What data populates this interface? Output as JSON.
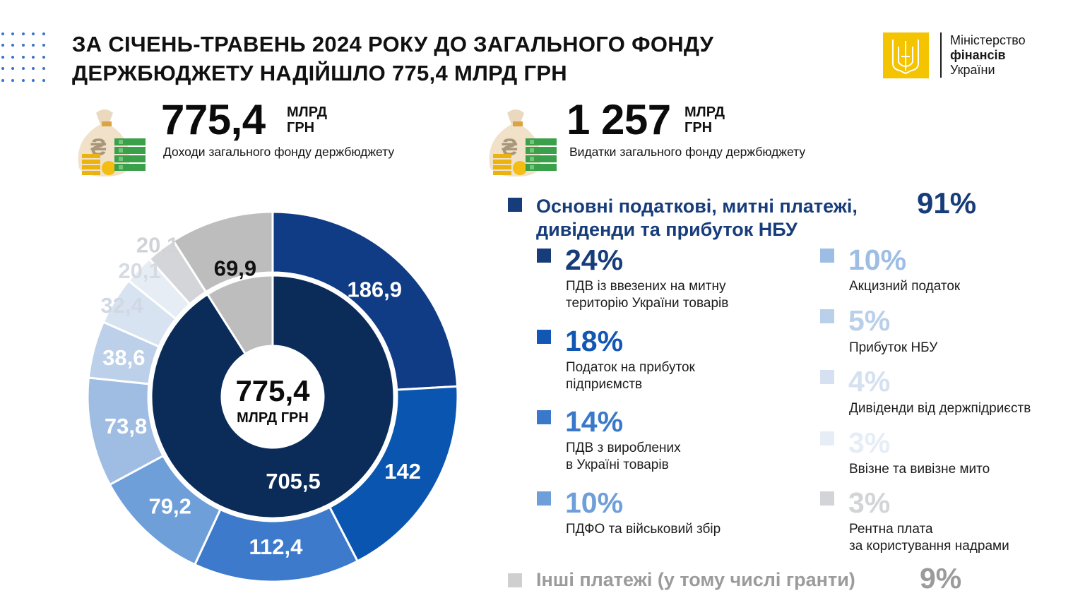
{
  "header": {
    "title_line1": "ЗА СІЧЕНЬ-ТРАВЕНЬ 2024 РОКУ ДО ЗАГАЛЬНОГО ФОНДУ",
    "title_line2": "ДЕРЖБЮДЖЕТУ НАДІЙШЛО 775,4 МЛРД ГРН"
  },
  "logo": {
    "line1": "Міністерство",
    "line2": "фінансів",
    "line3": "України"
  },
  "stats": [
    {
      "value": "775,4",
      "unit1": "МЛРД",
      "unit2": "ГРН",
      "caption": "Доходи загального фонду держбюджету",
      "icon": "money-bag-icon"
    },
    {
      "value": "1 257",
      "unit1": "МЛРД",
      "unit2": "ГРН",
      "caption": "Видатки загального фонду держбюджету",
      "icon": "money-bag-icon"
    }
  ],
  "legend": {
    "main_header": "Основні податкові, митні платежі, дивіденди та прибуток НБУ",
    "main_header_l1": "Основні податкові, митні платежі,",
    "main_header_l2": "дивіденди та прибуток НБУ",
    "main_pct": "91%",
    "main_color": "#173c7a",
    "items": [
      {
        "pct": "24%",
        "l1": "ПДВ із ввезених на митну",
        "l2": "територію України товарів",
        "color": "#173c7a"
      },
      {
        "pct": "18%",
        "l1": "Податок на прибуток",
        "l2": "підприємств",
        "color": "#1257b3"
      },
      {
        "pct": "14%",
        "l1": "ПДВ з вироблених",
        "l2": "в Україні товарів",
        "color": "#3a79c9"
      },
      {
        "pct": "10%",
        "l1": "ПДФО та військовий збір",
        "l2": "",
        "color": "#6f9fd8"
      },
      {
        "pct": "10%",
        "l1": "Акцизний податок",
        "l2": "",
        "color": "#9dbde4"
      },
      {
        "pct": "5%",
        "l1": "Прибуток НБУ",
        "l2": "",
        "color": "#b9cfea"
      },
      {
        "pct": "4%",
        "l1": "Дивіденди від держпідриєств",
        "l2": "",
        "color": "#d5e1f0"
      },
      {
        "pct": "3%",
        "l1": "Ввізне та вивізне мито",
        "l2": "",
        "color": "#e6edf6"
      },
      {
        "pct": "3%",
        "l1": "Рентна плата",
        "l2": "за користування надрами",
        "color": "#d2d4d7"
      }
    ],
    "other_label": "Інші платежі (у тому числі гранти)",
    "other_pct": "9%",
    "other_color": "#cfcfcf"
  },
  "chart_data": {
    "type": "pie",
    "subtype": "double-donut",
    "center_value": "775,4",
    "center_unit": "МЛРД ГРН",
    "outer": {
      "labels": [
        "186,9",
        "142",
        "112,4",
        "79,2",
        "73,8",
        "38,6",
        "32,4",
        "20,1",
        "20,1",
        "69,9"
      ],
      "values": [
        186.9,
        142,
        112.4,
        79.2,
        73.8,
        38.6,
        32.4,
        20.1,
        20.1,
        69.9
      ],
      "colors": [
        "#0f3c85",
        "#0a55b0",
        "#3d7acb",
        "#6e9fd8",
        "#9fbde3",
        "#bcd0ea",
        "#d8e3f1",
        "#e7edf5",
        "#d3d5d8",
        "#bdbdbd"
      ],
      "label_colors": [
        "#ffffff",
        "#ffffff",
        "#ffffff",
        "#ffffff",
        "#ffffff",
        "#ffffff",
        "#d0d8e4",
        "#d6dbe3",
        "#d0d3d7",
        "#111111"
      ]
    },
    "inner": {
      "labels": [
        "705,5",
        "69,9"
      ],
      "values": [
        705.5,
        69.9
      ],
      "colors": [
        "#0b2b58",
        "#bdbdbd"
      ]
    }
  }
}
